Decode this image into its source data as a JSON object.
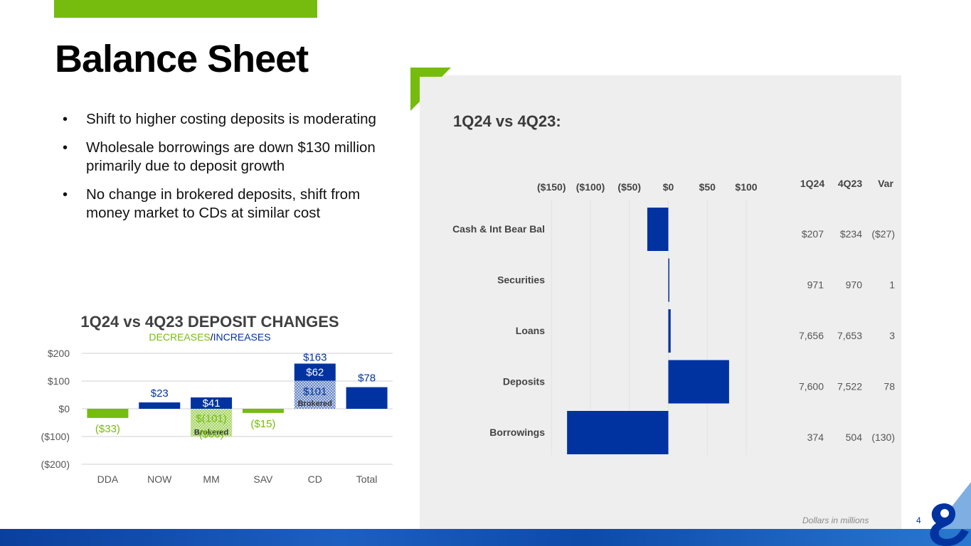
{
  "title": "Balance Sheet",
  "bullets": [
    "Shift to higher costing deposits is moderating",
    "Wholesale borrowings are down $130 million primarily due to deposit growth",
    "No change in brokered deposits, shift from money market to CDs at similar cost"
  ],
  "deposit_chart_title": "1Q24 vs 4Q23 DEPOSIT CHANGES",
  "deposit_chart_sub_decreases": "DECREASES",
  "deposit_chart_sub_sep": "/",
  "deposit_chart_sub_increases": "INCREASES",
  "panel_title": "1Q24 vs 4Q23:",
  "table_headers": [
    "1Q24",
    "4Q23",
    "Var"
  ],
  "footnote": "Dollars in millions",
  "page_number": "4",
  "colors": {
    "green": "#76bc0e",
    "blue": "#0033a0"
  },
  "chart_data": [
    {
      "type": "bar",
      "title": "1Q24 vs 4Q23 DEPOSIT CHANGES",
      "categories": [
        "DDA",
        "NOW",
        "MM",
        "SAV",
        "CD",
        "Total"
      ],
      "ylim": [
        -200,
        200
      ],
      "yticks": [
        200,
        100,
        0,
        -100,
        -200
      ],
      "ytick_labels": [
        "$200",
        "$100",
        "$0",
        "($100)",
        "($200)"
      ],
      "grid": true,
      "bars": [
        {
          "category": "DDA",
          "start": 0,
          "end": -33,
          "color": "green",
          "label": "($33)"
        },
        {
          "category": "NOW",
          "start": 0,
          "end": 23,
          "color": "blue",
          "label": "$23"
        },
        {
          "category": "MM",
          "start": 0,
          "end": 41,
          "color": "blue",
          "label": "$41"
        },
        {
          "category": "MM",
          "start": 0,
          "end": -101,
          "color": "green-hatched",
          "label": "$(101)",
          "sublabel": "Brokered"
        },
        {
          "category": "MM",
          "start": 0,
          "end": -60,
          "color": "none",
          "label": "($60)"
        },
        {
          "category": "SAV",
          "start": 0,
          "end": -15,
          "color": "green",
          "label": "($15)"
        },
        {
          "category": "CD",
          "start": 0,
          "end": 101,
          "color": "blue-hatched",
          "label": "$101",
          "sublabel": "Brokered"
        },
        {
          "category": "CD",
          "start": 101,
          "end": 163,
          "color": "blue",
          "label": "$62"
        },
        {
          "category": "CD",
          "start": 0,
          "end": 163,
          "color": "none",
          "label": "$163"
        },
        {
          "category": "Total",
          "start": 0,
          "end": 78,
          "color": "blue",
          "label": "$78"
        }
      ]
    },
    {
      "type": "bar",
      "orientation": "horizontal",
      "title": "1Q24 vs 4Q23:",
      "categories": [
        "Cash & Int Bear Bal",
        "Securities",
        "Loans",
        "Deposits",
        "Borrowings"
      ],
      "values": [
        -27,
        1,
        3,
        78,
        -130
      ],
      "xlim": [
        -150,
        100
      ],
      "xticks": [
        -150,
        -100,
        -50,
        0,
        50,
        100
      ],
      "xtick_labels": [
        "($150)",
        "($100)",
        "($50)",
        "$0",
        "$50",
        "$100"
      ],
      "grid": true,
      "table": [
        {
          "q1_24": "$207",
          "q4_23": "$234",
          "var": "($27)"
        },
        {
          "q1_24": "971",
          "q4_23": "970",
          "var": "1"
        },
        {
          "q1_24": "7,656",
          "q4_23": "7,653",
          "var": "3"
        },
        {
          "q1_24": "7,600",
          "q4_23": "7,522",
          "var": "78"
        },
        {
          "q1_24": "374",
          "q4_23": "504",
          "var": "(130)"
        }
      ]
    }
  ]
}
